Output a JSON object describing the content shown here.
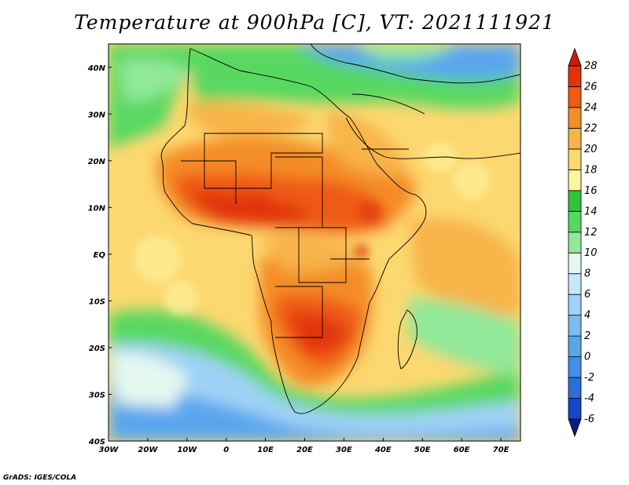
{
  "title": "Temperature at 900hPa [C], VT: 2021111921",
  "credit": "GrADS: IGES/COLA",
  "map": {
    "region": "Africa",
    "field": "temperature",
    "level_hpa": 900,
    "units": "C",
    "lon_range": [
      -30,
      75
    ],
    "lat_range": [
      -40,
      45
    ]
  },
  "axes": {
    "x_ticks": [
      {
        "value": -30,
        "label": "30W"
      },
      {
        "value": -20,
        "label": "20W"
      },
      {
        "value": -10,
        "label": "10W"
      },
      {
        "value": 0,
        "label": "0"
      },
      {
        "value": 10,
        "label": "10E"
      },
      {
        "value": 20,
        "label": "20E"
      },
      {
        "value": 30,
        "label": "30E"
      },
      {
        "value": 40,
        "label": "40E"
      },
      {
        "value": 50,
        "label": "50E"
      },
      {
        "value": 60,
        "label": "60E"
      },
      {
        "value": 70,
        "label": "70E"
      }
    ],
    "y_ticks": [
      {
        "value": 40,
        "label": "40N"
      },
      {
        "value": 30,
        "label": "30N"
      },
      {
        "value": 20,
        "label": "20N"
      },
      {
        "value": 10,
        "label": "10N"
      },
      {
        "value": 0,
        "label": "EQ"
      },
      {
        "value": -10,
        "label": "10S"
      },
      {
        "value": -20,
        "label": "20S"
      },
      {
        "value": -30,
        "label": "30S"
      },
      {
        "value": -40,
        "label": "40S"
      }
    ]
  },
  "colorbar": {
    "levels": [
      -6,
      -4,
      -2,
      0,
      2,
      4,
      6,
      8,
      10,
      12,
      14,
      16,
      18,
      20,
      22,
      24,
      26,
      28
    ],
    "level_labels": [
      "-6",
      "-4",
      "-2",
      "0",
      "2",
      "4",
      "6",
      "8",
      "10",
      "12",
      "14",
      "16",
      "18",
      "20",
      "22",
      "24",
      "26",
      "28"
    ],
    "colors": [
      "#0b1e82",
      "#1548c6",
      "#2a6fdc",
      "#3f8fe6",
      "#5aa6ee",
      "#7cbcf2",
      "#9fd2f6",
      "#c4e8fa",
      "#e4f8f0",
      "#92e89a",
      "#58d860",
      "#2ec43e",
      "#fff4a0",
      "#fcd870",
      "#f7b44a",
      "#f48c28",
      "#ef5a14",
      "#e1340a",
      "#cc1c08"
    ]
  }
}
